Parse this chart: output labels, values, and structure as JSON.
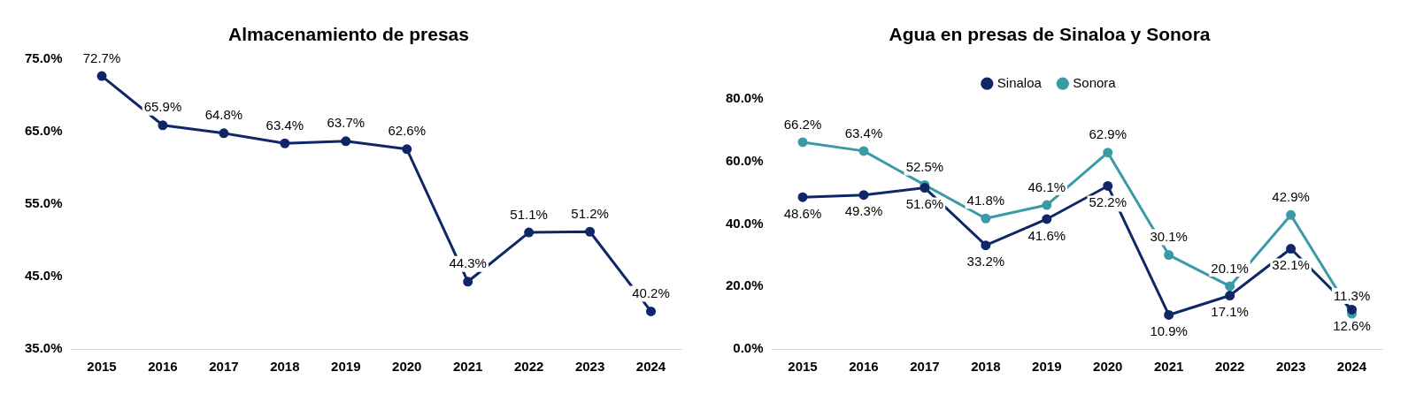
{
  "chart_data": [
    {
      "type": "line",
      "title": "Almacenamiento de presas",
      "categories": [
        "2015",
        "2016",
        "2017",
        "2018",
        "2019",
        "2020",
        "2021",
        "2022",
        "2023",
        "2024"
      ],
      "series": [
        {
          "color": "#0f2766",
          "values": [
            72.7,
            65.9,
            64.8,
            63.4,
            63.7,
            62.6,
            44.3,
            51.1,
            51.2,
            40.2
          ],
          "value_labels": [
            "72.7%",
            "65.9%",
            "64.8%",
            "63.4%",
            "63.7%",
            "62.6%",
            "44.3%",
            "51.1%",
            "51.2%",
            "40.2%"
          ]
        }
      ],
      "ylim": [
        35,
        75
      ],
      "yticks": [
        {
          "value": 35,
          "label": "35.0%"
        },
        {
          "value": 45,
          "label": "45.0%"
        },
        {
          "value": 55,
          "label": "55.0%"
        },
        {
          "value": 65,
          "label": "65.0%"
        },
        {
          "value": 75,
          "label": "75.0%"
        }
      ],
      "grid": false,
      "legend": false,
      "marker": "circle",
      "line_style": "solid"
    },
    {
      "type": "line",
      "title": "Agua en presas de Sinaloa y Sonora",
      "categories": [
        "2015",
        "2016",
        "2017",
        "2018",
        "2019",
        "2020",
        "2021",
        "2022",
        "2023",
        "2024"
      ],
      "series": [
        {
          "name": "Sinaloa",
          "color": "#0f2766",
          "values": [
            48.6,
            49.3,
            51.6,
            33.2,
            41.6,
            52.2,
            10.9,
            17.1,
            32.1,
            12.6
          ],
          "value_labels": [
            "48.6%",
            "49.3%",
            "51.6%",
            "33.2%",
            "41.6%",
            "52.2%",
            "10.9%",
            "17.1%",
            "32.1%",
            "12.6%"
          ]
        },
        {
          "name": "Sonora",
          "color": "#3a9aa5",
          "values": [
            66.2,
            63.4,
            52.5,
            41.8,
            46.1,
            62.9,
            30.1,
            20.1,
            42.9,
            11.3
          ],
          "value_labels": [
            "66.2%",
            "63.4%",
            "52.5%",
            "41.8%",
            "46.1%",
            "62.9%",
            "30.1%",
            "20.1%",
            "42.9%",
            "11.3%"
          ]
        }
      ],
      "ylim": [
        0,
        80
      ],
      "yticks": [
        {
          "value": 0,
          "label": "0.0%"
        },
        {
          "value": 20,
          "label": "20.0%"
        },
        {
          "value": 40,
          "label": "40.0%"
        },
        {
          "value": 60,
          "label": "60.0%"
        },
        {
          "value": 80,
          "label": "80.0%"
        }
      ],
      "grid": false,
      "legend": "top",
      "marker": "circle",
      "line_style": "solid"
    }
  ]
}
